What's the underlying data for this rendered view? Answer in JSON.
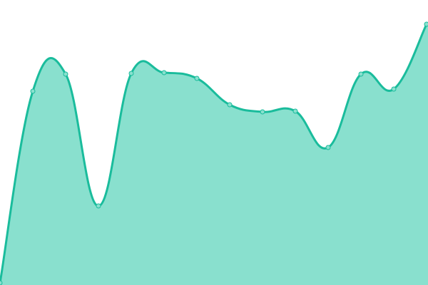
{
  "chart_data": {
    "type": "area",
    "title": "",
    "xlabel": "",
    "ylabel": "",
    "x": [
      0,
      1,
      2,
      3,
      4,
      5,
      6,
      7,
      8,
      9,
      10,
      11,
      12,
      13
    ],
    "values": [
      3,
      272,
      296,
      111,
      297,
      298,
      290,
      253,
      243,
      244,
      193,
      296,
      275,
      366
    ],
    "ylim": [
      0,
      400
    ],
    "grid": false,
    "axes_visible": false,
    "smooth": true,
    "markers": true,
    "colors": {
      "line": "#1abc9c",
      "fill": "#89e0ce",
      "marker_fill": "#89e0ce"
    }
  }
}
